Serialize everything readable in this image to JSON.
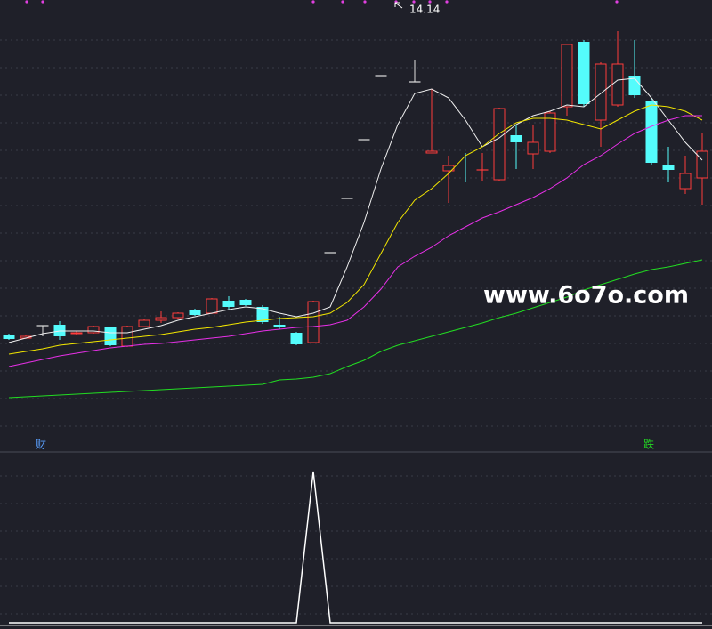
{
  "chart_data": [
    {
      "type": "candlestick",
      "up_color": "#ff3c3c",
      "down_color": "#54fcfc",
      "flat_color": "#e0e0e0",
      "open": [
        7.98,
        7.9,
        8.18,
        8.2,
        8.0,
        8.02,
        8.14,
        7.72,
        8.16,
        8.3,
        8.36,
        8.54,
        8.46,
        8.74,
        8.76,
        8.6,
        8.2,
        8.02,
        7.8,
        9.82,
        11.04,
        12.36,
        13.8,
        null,
        13.66,
        12.06,
        11.66,
        11.8,
        11.68,
        11.46,
        12.46,
        12.04,
        12.1,
        13.1,
        14.56,
        12.8,
        13.14,
        13.8,
        13.24,
        11.78,
        11.26,
        11.5
      ],
      "high": [
        8.0,
        7.96,
        8.18,
        8.28,
        8.06,
        8.18,
        8.16,
        8.18,
        8.32,
        8.5,
        8.48,
        8.56,
        8.8,
        8.84,
        8.78,
        8.64,
        8.38,
        8.04,
        8.74,
        9.82,
        11.04,
        12.36,
        13.8,
        null,
        14.14,
        13.5,
        12.0,
        12.06,
        12.06,
        13.08,
        12.7,
        12.7,
        13.0,
        14.5,
        14.6,
        14.1,
        14.8,
        14.6,
        13.3,
        12.2,
        12.0,
        12.5
      ],
      "low": [
        7.86,
        7.88,
        7.94,
        7.86,
        7.96,
        8.0,
        7.72,
        7.7,
        8.14,
        8.24,
        8.34,
        8.4,
        8.44,
        8.54,
        8.62,
        8.22,
        8.1,
        7.74,
        7.78,
        9.82,
        11.04,
        12.36,
        13.8,
        null,
        13.66,
        12.06,
        10.94,
        11.4,
        11.44,
        11.44,
        11.7,
        11.7,
        12.06,
        12.9,
        13.1,
        12.2,
        13.1,
        13.3,
        11.8,
        11.4,
        11.14,
        10.9
      ],
      "close": [
        7.88,
        7.94,
        8.18,
        7.94,
        8.02,
        8.16,
        7.74,
        8.16,
        8.3,
        8.36,
        8.46,
        8.42,
        8.78,
        8.6,
        8.64,
        8.26,
        8.14,
        7.76,
        8.72,
        9.82,
        11.04,
        12.36,
        13.8,
        null,
        13.66,
        12.1,
        11.78,
        11.78,
        11.7,
        13.06,
        12.3,
        12.3,
        12.96,
        14.5,
        13.16,
        14.06,
        14.06,
        13.36,
        11.84,
        11.68,
        11.6,
        12.1
      ],
      "series": [
        {
          "color": "#f0f0f0",
          "values": [
            7.8,
            7.9,
            8.0,
            8.06,
            8.06,
            8.06,
            8.02,
            8.02,
            8.1,
            8.18,
            8.3,
            8.38,
            8.46,
            8.54,
            8.6,
            8.56,
            8.46,
            8.38,
            8.46,
            8.6,
            9.5,
            10.5,
            11.7,
            12.7,
            13.4,
            13.5,
            13.3,
            12.8,
            12.2,
            12.4,
            12.7,
            12.9,
            13.0,
            13.14,
            13.1,
            13.4,
            13.7,
            13.74,
            13.3,
            12.8,
            12.3,
            11.9
          ]
        },
        {
          "color": "#f2e600",
          "values": [
            7.54,
            7.6,
            7.66,
            7.74,
            7.78,
            7.82,
            7.86,
            7.9,
            7.94,
            7.98,
            8.04,
            8.1,
            8.14,
            8.2,
            8.26,
            8.3,
            8.34,
            8.36,
            8.38,
            8.46,
            8.7,
            9.1,
            9.8,
            10.5,
            11.0,
            11.26,
            11.6,
            12.0,
            12.2,
            12.5,
            12.74,
            12.84,
            12.84,
            12.8,
            12.7,
            12.6,
            12.8,
            13.0,
            13.14,
            13.1,
            13.0,
            12.8
          ]
        },
        {
          "color": "#e830e8",
          "values": [
            7.26,
            7.34,
            7.42,
            7.5,
            7.56,
            7.62,
            7.68,
            7.72,
            7.76,
            7.78,
            7.82,
            7.86,
            7.9,
            7.94,
            8.0,
            8.06,
            8.1,
            8.14,
            8.16,
            8.2,
            8.3,
            8.6,
            9.0,
            9.5,
            9.74,
            9.94,
            10.2,
            10.4,
            10.6,
            10.74,
            10.9,
            11.06,
            11.26,
            11.5,
            11.8,
            12.0,
            12.26,
            12.5,
            12.66,
            12.8,
            12.9,
            12.9
          ]
        },
        {
          "color": "#22dd22",
          "values": [
            6.56,
            6.58,
            6.6,
            6.62,
            6.64,
            6.66,
            6.68,
            6.7,
            6.72,
            6.74,
            6.76,
            6.78,
            6.8,
            6.82,
            6.84,
            6.86,
            6.96,
            6.98,
            7.02,
            7.1,
            7.26,
            7.4,
            7.6,
            7.74,
            7.84,
            7.94,
            8.04,
            8.14,
            8.24,
            8.36,
            8.46,
            8.58,
            8.7,
            8.82,
            8.98,
            9.1,
            9.22,
            9.34,
            9.44,
            9.5,
            9.58,
            9.66
          ]
        }
      ],
      "ylim": [
        5.5,
        15.5
      ],
      "grid": true,
      "annotation": "14.14",
      "markers": [
        {
          "text": "财",
          "color": "#5aa0ff"
        },
        {
          "text": "跌",
          "color": "#22dd22"
        }
      ],
      "watermark": "www.6o7o.com"
    },
    {
      "type": "line",
      "color": "#ffffff",
      "values": [
        0,
        0,
        0,
        0,
        0,
        0,
        0,
        0,
        0,
        0,
        0,
        0,
        0,
        0,
        0,
        0,
        0,
        0,
        1,
        0,
        0,
        0,
        0,
        0,
        0,
        0,
        0,
        0,
        0,
        0,
        0,
        0,
        0,
        0,
        0,
        0,
        0,
        0,
        0,
        0,
        0,
        0
      ],
      "ylim": [
        0,
        1
      ],
      "grid": true
    }
  ]
}
